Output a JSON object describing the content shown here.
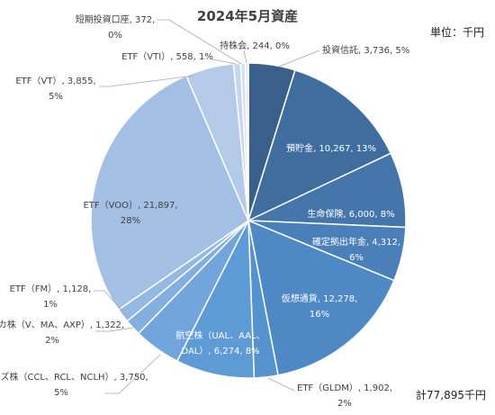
{
  "chart_data": {
    "type": "pie",
    "title": "2024年5月資産",
    "unit_label": "単位：千円",
    "total_label": "計77,895千円",
    "slices": [
      {
        "label": "投資信託",
        "value": 3736,
        "percent": "5%",
        "color": "#3a5f8a"
      },
      {
        "label": "預貯金",
        "value": 10267,
        "percent": "13%",
        "color": "#3f6d9e"
      },
      {
        "label": "生命保険",
        "value": 6000,
        "percent": "8%",
        "color": "#4476ab"
      },
      {
        "label": "確定拠出年金",
        "value": 4312,
        "percent": "6%",
        "color": "#4a7fb9"
      },
      {
        "label": "仮想通貨",
        "value": 12278,
        "percent": "16%",
        "color": "#4f89c5"
      },
      {
        "label": "ETF（GLDM）",
        "value": 1902,
        "percent": "2%",
        "color": "#5592cf"
      },
      {
        "label": "航空株（UAL、AAL、DAL）",
        "value": 6274,
        "percent": "8%",
        "color": "#5e9bd6"
      },
      {
        "label": "クルーズ株（CCL、RCL、NCLH）",
        "value": 3750,
        "percent": "5%",
        "color": "#71a5dc"
      },
      {
        "label": "クレカ株（V、MA、AXP）",
        "value": 1322,
        "percent": "2%",
        "color": "#83afe0"
      },
      {
        "label": "ETF（FM）",
        "value": 1128,
        "percent": "1%",
        "color": "#93b8e2"
      },
      {
        "label": "ETF（VOO）",
        "value": 21897,
        "percent": "28%",
        "color": "#a3c0e4"
      },
      {
        "label": "ETF（VT）",
        "value": 3855,
        "percent": "5%",
        "color": "#b3cbe8"
      },
      {
        "label": "ETF（VTI）",
        "value": 558,
        "percent": "1%",
        "color": "#c3d6ed"
      },
      {
        "label": "短期投資口座",
        "value": 372,
        "percent": "0%",
        "color": "#d3e1f2"
      },
      {
        "label": "持株会",
        "value": 244,
        "percent": "0%",
        "color": "#e2ebf6"
      }
    ]
  }
}
